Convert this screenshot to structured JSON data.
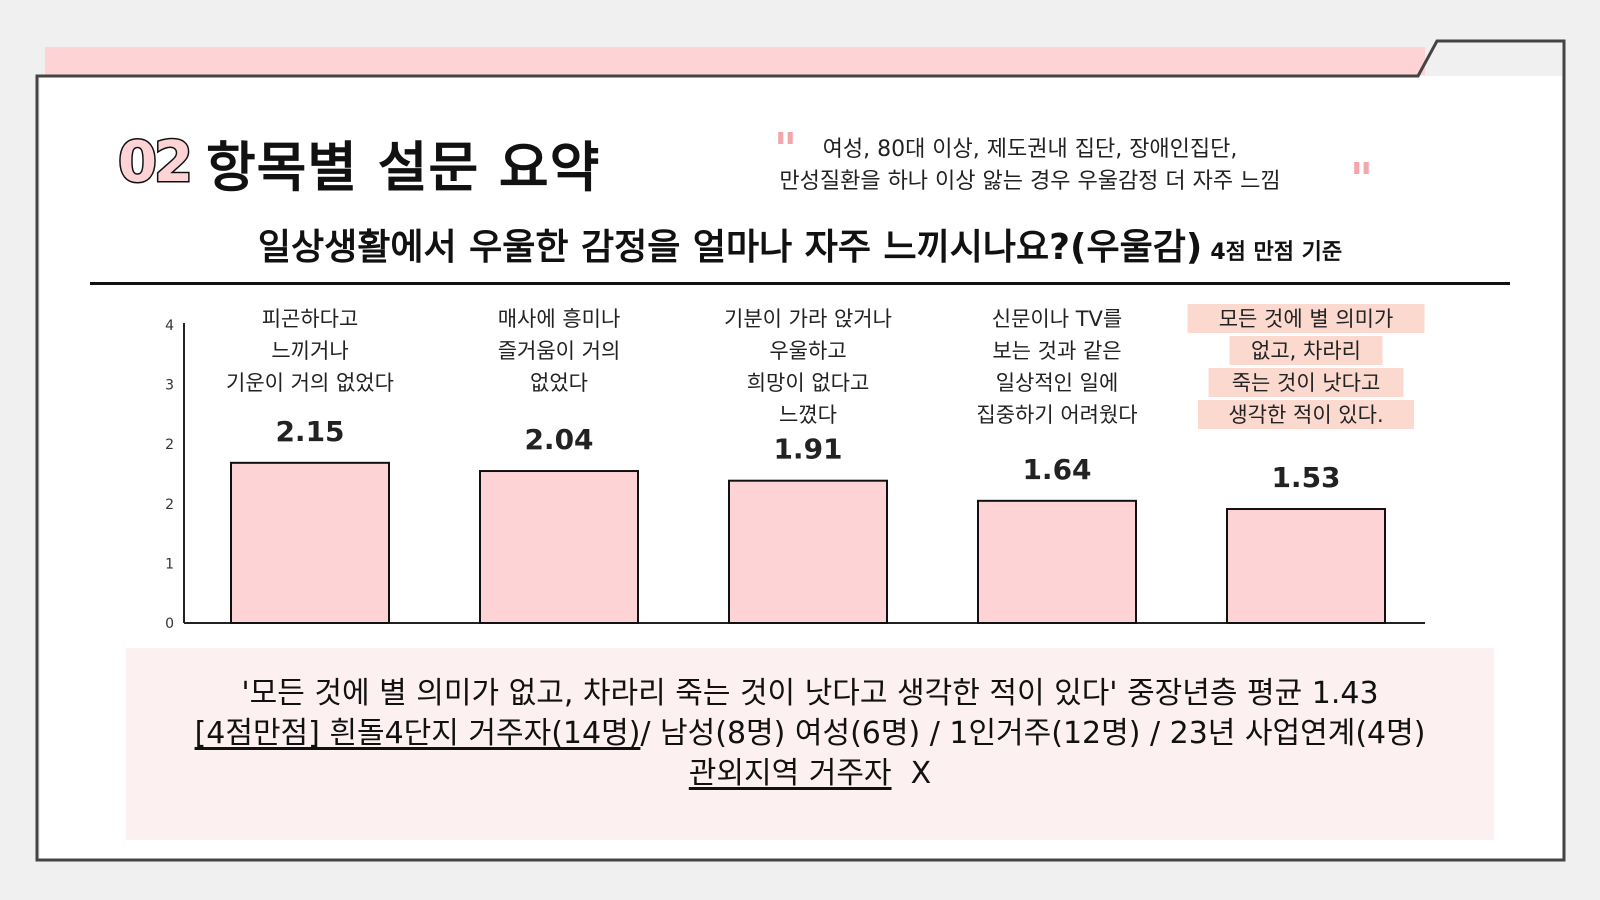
{
  "header": {
    "section_number": "02",
    "section_title": "항목별 설문 요약",
    "summary_line1": "여성, 80대 이상, 제도권내 집단, 장애인집단,",
    "summary_line2": "만성질환을 하나 이상 앓는 경우 우울감정 더 자주 느낌",
    "quote_open": "\"",
    "quote_close": "\""
  },
  "question": {
    "text": "일상생활에서 우울한 감정을 얼마나 자주 느끼시나요?(우울감)",
    "basis": "4점 만점 기준"
  },
  "chart_data": {
    "type": "bar",
    "categories": [
      "피곤하다고 느끼거나 기운이 거의 없었다",
      "매사에 흥미나 즐거움이 거의 없었다",
      "기분이 가라 앉거나 우울하고 희망이 없다고 느꼈다",
      "신문이나 TV를 보는 것과 같은 일상적인 일에 집중하기 어려웠다",
      "모든 것에 별 의미가 없고, 차라리 죽는 것이 낫다고 생각한 적이 있다."
    ],
    "category_lines": [
      [
        "피곤하다고",
        "느끼거나",
        "기운이 거의 없었다"
      ],
      [
        "매사에 흥미나",
        "즐거움이 거의",
        "없었다"
      ],
      [
        "기분이 가라 앉거나",
        "우울하고",
        "희망이 없다고",
        "느꼈다"
      ],
      [
        "신문이나 TV를",
        "보는 것과 같은",
        "일상적인 일에",
        "집중하기 어려웠다"
      ],
      [
        "모든 것에 별 의미가",
        "없고, 차라리",
        "죽는 것이 낫다고",
        "생각한 적이 있다."
      ]
    ],
    "highlighted_category_index": 4,
    "values": [
      2.15,
      2.04,
      1.91,
      1.64,
      1.53
    ],
    "value_labels": [
      "2.15",
      "2.04",
      "1.91",
      "1.64",
      "1.53"
    ],
    "ytick_labels": [
      "0",
      "1",
      "2",
      "2",
      "3",
      "4"
    ],
    "ylim": [
      0,
      4
    ],
    "bar_color": "#fdd3d5",
    "highlight_color": "#fbd9cf",
    "grid": false
  },
  "note": {
    "line1": "'모든 것에 별 의미가 없고, 차라리 죽는 것이 낫다고 생각한 적이 있다' 중장년층 평균 1.43",
    "line2_underlined": "[4점만점] 흰돌4단지 거주자(14명)",
    "line2_rest": "/ 남성(8명) 여성(6명) / 1인거주(12명) / 23년 사업연계(4명)",
    "line3_underlined": "관외지역 거주자",
    "line3_rest": "X"
  }
}
